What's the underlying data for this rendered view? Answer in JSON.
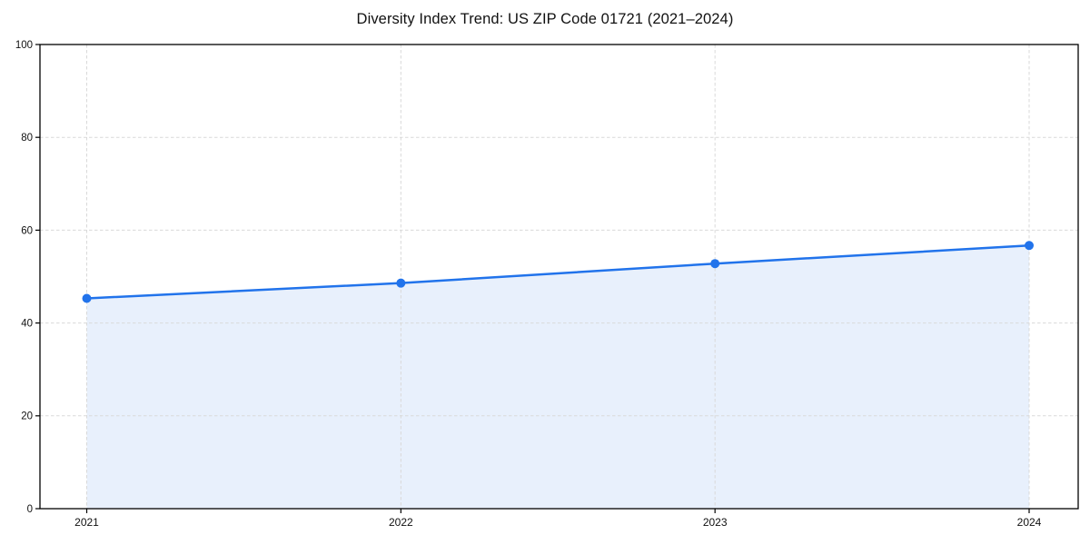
{
  "chart_data": {
    "type": "area",
    "title": "Diversity Index Trend: US ZIP Code 01721 (2021–2024)",
    "x": [
      "2021",
      "2022",
      "2023",
      "2024"
    ],
    "values": [
      45.3,
      48.6,
      52.8,
      56.7
    ],
    "xticks": [
      "2021",
      "2022",
      "2023",
      "2024"
    ],
    "yticks": [
      0,
      20,
      40,
      60,
      80,
      100
    ],
    "ylim": [
      0,
      100
    ],
    "xlabel": "",
    "ylabel": "",
    "grid": true,
    "grid_style": "dashed",
    "legend": "none",
    "marker": "circle",
    "colors": {
      "line": "#2173eb",
      "marker": "#2173eb",
      "fill": "#e8f0fc",
      "grid": "#d9d9d9",
      "axis": "#000000",
      "tick_text": "#111111",
      "title_text": "#111111",
      "background": "#ffffff"
    }
  }
}
